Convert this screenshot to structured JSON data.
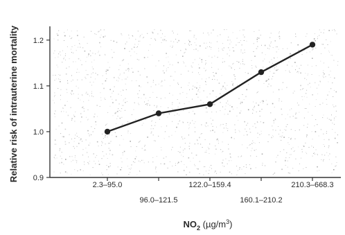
{
  "chart_data": {
    "type": "line",
    "categories": [
      "2.3–95.0",
      "96.0–121.5",
      "122.0–159.4",
      "160.1–210.2",
      "210.3–668.3"
    ],
    "series": [
      {
        "values": [
          1.0,
          1.04,
          1.06,
          1.13,
          1.19
        ]
      }
    ],
    "ylabel": "Relative risk of intrauterine mortality",
    "xlabel_main": "NO",
    "xlabel_sub": "2",
    "xlabel_unit": " (µg/m",
    "xlabel_sup": "3",
    "xlabel_close": ")",
    "yticks": [
      "0.9",
      "1.0",
      "1.1",
      "1.2"
    ],
    "ylim": [
      0.9,
      1.23
    ],
    "grid": false,
    "colors": {
      "line": "#222222",
      "axis": "#333333"
    }
  }
}
